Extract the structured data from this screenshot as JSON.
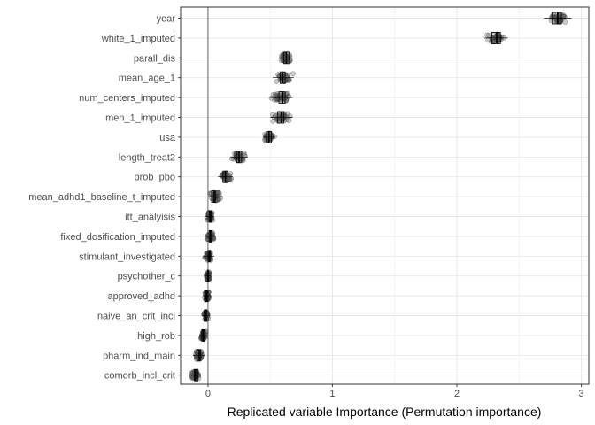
{
  "chart_data": {
    "type": "scatter",
    "title": "",
    "xlabel": "Replicated variable Importance (Permutation importance)",
    "ylabel": "",
    "xlim": [
      -0.22,
      3.06
    ],
    "xticks": [
      0,
      1,
      2,
      3
    ],
    "grid": true,
    "reference_line_x": 0,
    "marker_style": "open-grey-circles-with-boxplot",
    "categories": [
      "year",
      "white_1_imputed",
      "parall_dis",
      "mean_age_1",
      "num_centers_imputed",
      "men_1_imputed",
      "usa",
      "length_treat2",
      "prob_pbo",
      "mean_adhd1_baseline_t_imputed",
      "itt_analyisis",
      "fixed_dosification_imputed",
      "stimulant_investigated",
      "psychother_c",
      "approved_adhd",
      "naive_an_crit_incl",
      "high_rob",
      "pharm_ind_main",
      "comorb_incl_crit"
    ],
    "series": [
      {
        "values": [
          {
            "median": 2.81,
            "q1": 2.77,
            "q3": 2.84,
            "min": 2.7,
            "max": 2.92
          },
          {
            "median": 2.32,
            "q1": 2.28,
            "q3": 2.35,
            "min": 2.22,
            "max": 2.41
          },
          {
            "median": 0.63,
            "q1": 0.61,
            "q3": 0.65,
            "min": 0.57,
            "max": 0.68
          },
          {
            "median": 0.6,
            "q1": 0.58,
            "q3": 0.62,
            "min": 0.52,
            "max": 0.69
          },
          {
            "median": 0.6,
            "q1": 0.57,
            "q3": 0.62,
            "min": 0.5,
            "max": 0.68
          },
          {
            "median": 0.59,
            "q1": 0.56,
            "q3": 0.61,
            "min": 0.5,
            "max": 0.68
          },
          {
            "median": 0.49,
            "q1": 0.47,
            "q3": 0.51,
            "min": 0.44,
            "max": 0.54
          },
          {
            "median": 0.25,
            "q1": 0.23,
            "q3": 0.27,
            "min": 0.18,
            "max": 0.32
          },
          {
            "median": 0.14,
            "q1": 0.12,
            "q3": 0.16,
            "min": 0.08,
            "max": 0.2
          },
          {
            "median": 0.05,
            "q1": 0.03,
            "q3": 0.06,
            "min": 0.0,
            "max": 0.12
          },
          {
            "median": 0.02,
            "q1": 0.01,
            "q3": 0.03,
            "min": -0.02,
            "max": 0.05
          },
          {
            "median": 0.02,
            "q1": 0.01,
            "q3": 0.03,
            "min": -0.02,
            "max": 0.06
          },
          {
            "median": 0.01,
            "q1": 0.0,
            "q3": 0.02,
            "min": -0.04,
            "max": 0.05
          },
          {
            "median": 0.0,
            "q1": -0.005,
            "q3": 0.005,
            "min": -0.02,
            "max": 0.02
          },
          {
            "median": -0.01,
            "q1": -0.02,
            "q3": 0.0,
            "min": -0.04,
            "max": 0.02
          },
          {
            "median": -0.02,
            "q1": -0.03,
            "q3": -0.01,
            "min": -0.05,
            "max": 0.01
          },
          {
            "median": -0.04,
            "q1": -0.05,
            "q3": -0.03,
            "min": -0.07,
            "max": -0.01
          },
          {
            "median": -0.07,
            "q1": -0.09,
            "q3": -0.06,
            "min": -0.12,
            "max": -0.03
          },
          {
            "median": -0.1,
            "q1": -0.11,
            "q3": -0.08,
            "min": -0.15,
            "max": -0.06
          }
        ]
      }
    ]
  }
}
